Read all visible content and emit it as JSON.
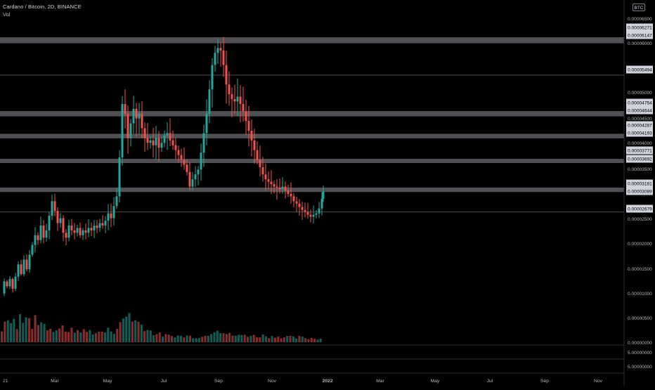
{
  "header": {
    "symbol_title": "Cardano / Bitcoin, 2D, BINANCE",
    "volume_label": "Vol",
    "currency_badge": "BTC"
  },
  "colors": {
    "background": "#000000",
    "up_candle": "#26a69a",
    "down_candle": "#ef5350",
    "level_band": "#5d5e63",
    "axis_text": "#b2b5be",
    "label_bg": "#d1d4dc"
  },
  "chart_data": {
    "type": "candlestick",
    "x_tick_labels": [
      "21",
      "Mar",
      "May",
      "Jul",
      "Sep",
      "Nov",
      "2022",
      "Mar",
      "May",
      "Jul",
      "Sep",
      "Nov"
    ],
    "y_axis_labels": [
      "0.00006500",
      "0.00006000",
      "0.00005000",
      "0.00004500",
      "0.00004000",
      "0.00003500",
      "0.00002500",
      "0.00002000",
      "0.00001500",
      "0.00001000",
      "0.00000500",
      "0.00000000"
    ],
    "y_range": [
      0,
      6.6e-05
    ],
    "level_labels": [
      "0.00006271",
      "0.00006147",
      "0.00005494",
      "0.00004754",
      "0.00004644",
      "0.00004287",
      "0.00004193",
      "0.00003771",
      "0.00003692",
      "0.00003181",
      "0.00003089",
      "0.00002679"
    ],
    "level_values": [
      6.271e-05,
      6.147e-05,
      5.494e-05,
      4.754e-05,
      4.644e-05,
      4.287e-05,
      4.193e-05,
      3.771e-05,
      3.692e-05,
      3.181e-05,
      3.089e-05,
      2.679e-05
    ],
    "bands": [
      [
        6.147e-05,
        6.271e-05
      ],
      [
        4.644e-05,
        4.754e-05
      ],
      [
        4.193e-05,
        4.287e-05
      ],
      [
        3.692e-05,
        3.771e-05
      ],
      [
        3.089e-05,
        3.181e-05
      ]
    ],
    "thin_levels": [
      5.494e-05,
      2.679e-05
    ],
    "other_labels": [
      "0.00004500"
    ],
    "pane_labels": [
      "5.00000000",
      "5.00000000"
    ],
    "close_path": [
      [
        0,
        1e-05
      ],
      [
        4,
        1.25e-05
      ],
      [
        8,
        1.15e-05
      ],
      [
        12,
        1.3e-05
      ],
      [
        16,
        1.1e-05
      ],
      [
        20,
        1.35e-05
      ],
      [
        24,
        1.6e-05
      ],
      [
        28,
        1.4e-05
      ],
      [
        32,
        1.7e-05
      ],
      [
        36,
        1.5e-05
      ],
      [
        40,
        1.8e-05
      ],
      [
        44,
        2e-05
      ],
      [
        48,
        2.2e-05
      ],
      [
        52,
        2.1e-05
      ],
      [
        56,
        2.4e-05
      ],
      [
        60,
        2.15e-05
      ],
      [
        64,
        2.3e-05
      ],
      [
        68,
        2.6e-05
      ],
      [
        72,
        2.9e-05
      ],
      [
        76,
        2.7e-05
      ],
      [
        80,
        2.45e-05
      ],
      [
        84,
        2.55e-05
      ],
      [
        88,
        2.25e-05
      ],
      [
        92,
        2.15e-05
      ],
      [
        96,
        2.4e-05
      ],
      [
        100,
        2.3e-05
      ],
      [
        104,
        2.25e-05
      ],
      [
        108,
        2.35e-05
      ],
      [
        112,
        2.2e-05
      ],
      [
        116,
        2.3e-05
      ],
      [
        120,
        2.25e-05
      ],
      [
        124,
        2.35e-05
      ],
      [
        128,
        2.3e-05
      ],
      [
        132,
        2.4e-05
      ],
      [
        136,
        2.35e-05
      ],
      [
        140,
        2.45e-05
      ],
      [
        144,
        2.4e-05
      ],
      [
        148,
        2.5e-05
      ],
      [
        152,
        2.65e-05
      ],
      [
        156,
        2.55e-05
      ],
      [
        160,
        2.8e-05
      ],
      [
        164,
        3e-05
      ],
      [
        168,
        3.8e-05
      ],
      [
        172,
        4.9e-05
      ],
      [
        176,
        4.7e-05
      ],
      [
        180,
        4.2e-05
      ],
      [
        184,
        4.5e-05
      ],
      [
        188,
        4.8e-05
      ],
      [
        192,
        4.6e-05
      ],
      [
        196,
        4.7e-05
      ],
      [
        200,
        4.4e-05
      ],
      [
        204,
        4.2e-05
      ],
      [
        208,
        4.1e-05
      ],
      [
        212,
        4.15e-05
      ],
      [
        216,
        4.05e-05
      ],
      [
        220,
        4.2e-05
      ],
      [
        224,
        4e-05
      ],
      [
        228,
        4.1e-05
      ],
      [
        232,
        4.25e-05
      ],
      [
        236,
        4.3e-05
      ],
      [
        240,
        4.15e-05
      ],
      [
        244,
        4.05e-05
      ],
      [
        248,
        3.95e-05
      ],
      [
        252,
        3.85e-05
      ],
      [
        256,
        3.75e-05
      ],
      [
        260,
        3.65e-05
      ],
      [
        264,
        3.5e-05
      ],
      [
        268,
        3.2e-05
      ],
      [
        272,
        3.35e-05
      ],
      [
        276,
        3.45e-05
      ],
      [
        280,
        3.55e-05
      ],
      [
        284,
        3.9e-05
      ],
      [
        288,
        4.3e-05
      ],
      [
        292,
        4.7e-05
      ],
      [
        296,
        5.2e-05
      ],
      [
        300,
        5.7e-05
      ],
      [
        304,
        5.95e-05
      ],
      [
        308,
        6.05e-05
      ],
      [
        312,
        6e-05
      ],
      [
        316,
        5.7e-05
      ],
      [
        320,
        5.3e-05
      ],
      [
        324,
        5.1e-05
      ],
      [
        328,
        5e-05
      ],
      [
        332,
        4.95e-05
      ],
      [
        336,
        5.05e-05
      ],
      [
        340,
        4.9e-05
      ],
      [
        344,
        4.75e-05
      ],
      [
        348,
        4.55e-05
      ],
      [
        352,
        4.35e-05
      ],
      [
        356,
        4.15e-05
      ],
      [
        360,
        3.95e-05
      ],
      [
        364,
        3.75e-05
      ],
      [
        368,
        3.6e-05
      ],
      [
        372,
        3.45e-05
      ],
      [
        376,
        3.35e-05
      ],
      [
        380,
        3.3e-05
      ],
      [
        384,
        3.25e-05
      ],
      [
        388,
        3.2e-05
      ],
      [
        392,
        3.18e-05
      ],
      [
        396,
        3.15e-05
      ],
      [
        400,
        3.2e-05
      ],
      [
        404,
        3.12e-05
      ],
      [
        408,
        3.05e-05
      ],
      [
        412,
        3e-05
      ],
      [
        416,
        2.9e-05
      ],
      [
        420,
        2.85e-05
      ],
      [
        424,
        2.78e-05
      ],
      [
        428,
        2.72e-05
      ],
      [
        432,
        2.68e-05
      ],
      [
        436,
        2.62e-05
      ],
      [
        440,
        2.58e-05
      ],
      [
        444,
        2.62e-05
      ],
      [
        448,
        2.65e-05
      ],
      [
        452,
        2.75e-05
      ],
      [
        456,
        2.95e-05
      ],
      [
        458,
        3.1e-05
      ]
    ],
    "volume_profile": [
      0.35,
      0.5,
      0.42,
      0.48,
      0.6,
      0.4,
      0.55,
      0.45,
      0.65,
      0.5,
      0.38,
      0.52,
      0.44,
      0.4,
      0.58,
      0.36,
      0.3,
      0.28,
      0.32,
      0.26,
      0.34,
      0.29,
      0.31,
      0.27,
      0.25,
      0.28,
      0.3,
      0.26,
      0.24,
      0.27,
      0.25,
      0.23,
      0.22,
      0.26,
      0.24,
      0.28,
      0.3,
      0.27,
      0.35,
      0.4,
      0.55,
      0.62,
      0.7,
      0.58,
      0.5,
      0.46,
      0.42,
      0.38,
      0.3,
      0.26,
      0.22,
      0.2,
      0.18,
      0.17,
      0.16,
      0.15,
      0.14,
      0.16,
      0.15,
      0.14,
      0.13,
      0.15,
      0.14,
      0.13,
      0.12,
      0.14,
      0.13,
      0.15,
      0.2,
      0.26,
      0.3,
      0.36,
      0.28,
      0.24,
      0.2,
      0.18,
      0.17,
      0.16,
      0.15,
      0.16,
      0.18,
      0.17,
      0.16,
      0.15,
      0.14,
      0.15,
      0.16,
      0.15,
      0.14,
      0.13,
      0.15,
      0.14,
      0.13,
      0.12,
      0.13,
      0.12,
      0.11,
      0.1,
      0.12,
      0.11,
      0.1,
      0.09,
      0.1,
      0.09,
      0.08,
      0.09
    ]
  }
}
